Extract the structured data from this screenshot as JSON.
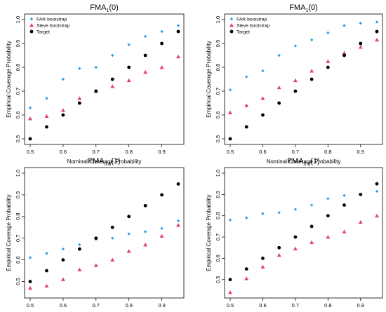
{
  "chart_data": [
    {
      "type": "scatter",
      "title_main": "FMA",
      "title_sub": "1",
      "title_arg": "(0)",
      "xlabel": "Nominal Coverage Probability",
      "ylabel": "Empirical Coverage Probability",
      "xlim": [
        0.5,
        0.95
      ],
      "ylim": [
        0.5,
        1.0
      ],
      "xticks": [
        "0.5",
        "0.6",
        "0.7",
        "0.8",
        "0.9"
      ],
      "yticks": [
        "0.5",
        "0.6",
        "0.7",
        "0.8",
        "0.9",
        "1.0"
      ],
      "legend": "top-left",
      "x": [
        0.5,
        0.55,
        0.6,
        0.65,
        0.7,
        0.75,
        0.8,
        0.85,
        0.9,
        0.95
      ],
      "series": [
        {
          "name": "FAR bootstrap",
          "marker": "diamond",
          "color": "#2c9fe0",
          "values": [
            0.63,
            0.67,
            0.75,
            0.795,
            0.8,
            0.85,
            0.895,
            0.93,
            0.95,
            0.975
          ]
        },
        {
          "name": "Sieve bootstrap",
          "marker": "triangle",
          "color": "#e0476a",
          "values": [
            0.585,
            0.595,
            0.62,
            0.67,
            0.7,
            0.72,
            0.745,
            0.78,
            0.8,
            0.845
          ]
        },
        {
          "name": "Target",
          "marker": "circle",
          "color": "#000000",
          "values": [
            0.5,
            0.55,
            0.6,
            0.65,
            0.7,
            0.75,
            0.8,
            0.85,
            0.9,
            0.95
          ]
        }
      ]
    },
    {
      "type": "scatter",
      "title_main": "FMA",
      "title_sub": "1",
      "title_arg": "(0)",
      "xlabel": "Nominal Coverage Probability",
      "ylabel": "Empirical Coverage Probability",
      "xlim": [
        0.5,
        0.95
      ],
      "ylim": [
        0.5,
        1.0
      ],
      "xticks": [
        "0.5",
        "0.6",
        "0.7",
        "0.8",
        "0.9"
      ],
      "yticks": [
        "0.5",
        "0.6",
        "0.7",
        "0.8",
        "0.9",
        "1.0"
      ],
      "legend": "top-left",
      "x": [
        0.5,
        0.55,
        0.6,
        0.65,
        0.7,
        0.75,
        0.8,
        0.85,
        0.9,
        0.95
      ],
      "series": [
        {
          "name": "FAR bootstrap",
          "marker": "diamond",
          "color": "#2c9fe0",
          "values": [
            0.705,
            0.76,
            0.785,
            0.85,
            0.89,
            0.915,
            0.945,
            0.975,
            0.985,
            0.99
          ]
        },
        {
          "name": "Sieve bootstrap",
          "marker": "triangle",
          "color": "#e0476a",
          "values": [
            0.61,
            0.64,
            0.67,
            0.715,
            0.745,
            0.785,
            0.825,
            0.86,
            0.885,
            0.915
          ]
        },
        {
          "name": "Target",
          "marker": "circle",
          "color": "#000000",
          "values": [
            0.5,
            0.55,
            0.6,
            0.65,
            0.7,
            0.75,
            0.8,
            0.85,
            0.9,
            0.95
          ]
        }
      ]
    },
    {
      "type": "scatter",
      "title_main": "FMA",
      "title_sub": "0.5",
      "title_arg": "(1)",
      "xlabel": "Nominal Coverage Probability",
      "ylabel": "Empirical Coverage Probability",
      "xlim": [
        0.5,
        0.95
      ],
      "ylim": [
        0.45,
        1.0
      ],
      "xticks": [
        "0.5",
        "0.6",
        "0.7",
        "0.8",
        "0.9"
      ],
      "yticks": [
        "0.5",
        "0.6",
        "0.7",
        "0.8",
        "0.9",
        "1.0"
      ],
      "x": [
        0.5,
        0.55,
        0.6,
        0.65,
        0.7,
        0.75,
        0.8,
        0.85,
        0.9,
        0.95
      ],
      "series": [
        {
          "marker": "diamond",
          "color": "#2c9fe0",
          "values": [
            0.61,
            0.63,
            0.65,
            0.67,
            0.695,
            0.7,
            0.72,
            0.73,
            0.745,
            0.78
          ]
        },
        {
          "marker": "triangle",
          "color": "#e0476a",
          "values": [
            0.47,
            0.48,
            0.51,
            0.555,
            0.575,
            0.6,
            0.64,
            0.67,
            0.71,
            0.76
          ]
        },
        {
          "marker": "circle",
          "color": "#000000",
          "values": [
            0.5,
            0.55,
            0.6,
            0.65,
            0.7,
            0.75,
            0.8,
            0.85,
            0.9,
            0.95
          ]
        }
      ]
    },
    {
      "type": "scatter",
      "title_main": "FMA",
      "title_sub": "0.5",
      "title_arg": "(1)",
      "xlabel": "Nominal Coverage Probability",
      "ylabel": "Empirical Coverage Probability",
      "xlim": [
        0.5,
        0.95
      ],
      "ylim": [
        0.44,
        1.0
      ],
      "xticks": [
        "0.5",
        "0.6",
        "0.7",
        "0.8",
        "0.9"
      ],
      "yticks": [
        "0.5",
        "0.6",
        "0.7",
        "0.8",
        "0.9",
        "1.0"
      ],
      "x": [
        0.5,
        0.55,
        0.6,
        0.65,
        0.7,
        0.75,
        0.8,
        0.85,
        0.9,
        0.95
      ],
      "series": [
        {
          "marker": "diamond",
          "color": "#2c9fe0",
          "values": [
            0.78,
            0.79,
            0.81,
            0.815,
            0.83,
            0.85,
            0.88,
            0.895,
            0.9,
            0.915
          ]
        },
        {
          "marker": "triangle",
          "color": "#e0476a",
          "values": [
            0.44,
            0.505,
            0.56,
            0.615,
            0.645,
            0.675,
            0.7,
            0.725,
            0.77,
            0.8
          ]
        },
        {
          "marker": "circle",
          "color": "#000000",
          "values": [
            0.5,
            0.55,
            0.6,
            0.65,
            0.7,
            0.75,
            0.8,
            0.85,
            0.9,
            0.95
          ]
        }
      ]
    }
  ]
}
